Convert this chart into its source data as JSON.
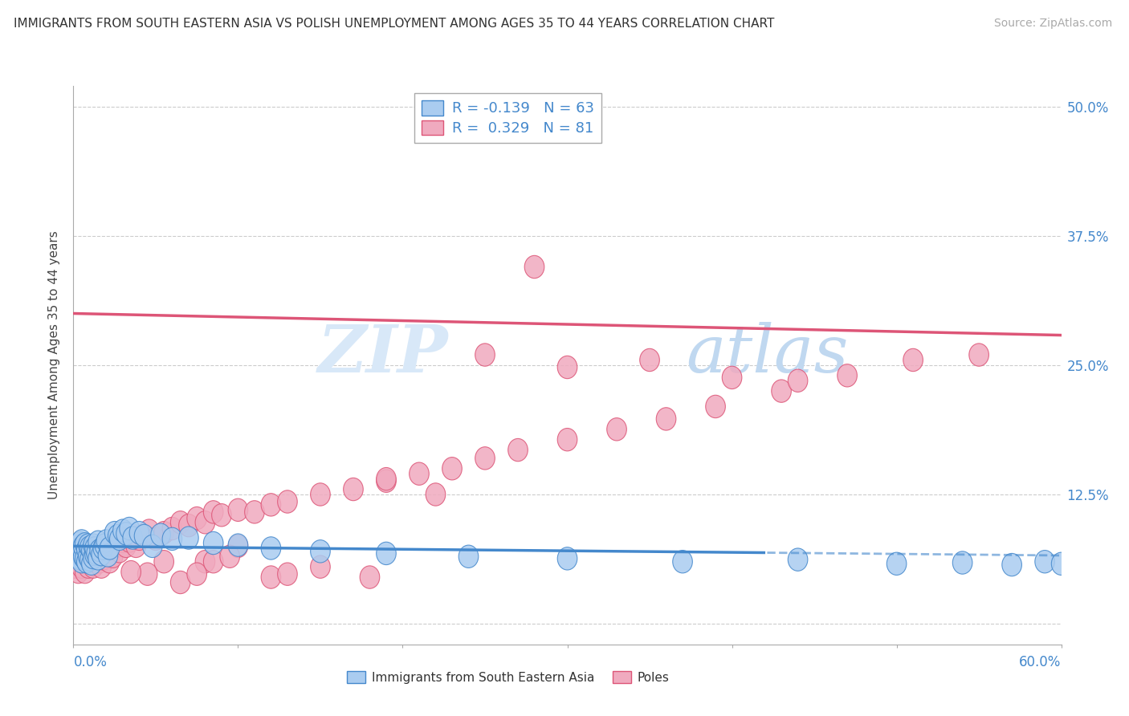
{
  "title": "IMMIGRANTS FROM SOUTH EASTERN ASIA VS POLISH UNEMPLOYMENT AMONG AGES 35 TO 44 YEARS CORRELATION CHART",
  "source": "Source: ZipAtlas.com",
  "xmin": 0.0,
  "xmax": 0.6,
  "ymin": -0.02,
  "ymax": 0.52,
  "yticks": [
    0.0,
    0.125,
    0.25,
    0.375,
    0.5
  ],
  "ytick_labels": [
    "",
    "12.5%",
    "25.0%",
    "37.5%",
    "50.0%"
  ],
  "legend_R_blue": "-0.139",
  "legend_N_blue": "63",
  "legend_R_pink": "0.329",
  "legend_N_pink": "81",
  "blue_color": "#aaccf0",
  "pink_color": "#f0aabf",
  "blue_edge_color": "#4488cc",
  "pink_edge_color": "#dd5577",
  "blue_line_color": "#4488cc",
  "pink_line_color": "#dd5577",
  "watermark_color": "#d8e8f8",
  "watermark_color2": "#c0d8f0",
  "blue_trend": [
    -0.015,
    0.075
  ],
  "pink_trend": [
    -0.035,
    0.3
  ],
  "blue_scatter_x": [
    0.001,
    0.002,
    0.002,
    0.003,
    0.003,
    0.004,
    0.004,
    0.005,
    0.005,
    0.005,
    0.006,
    0.006,
    0.007,
    0.007,
    0.008,
    0.008,
    0.009,
    0.009,
    0.01,
    0.01,
    0.011,
    0.011,
    0.012,
    0.012,
    0.013,
    0.013,
    0.014,
    0.015,
    0.015,
    0.016,
    0.017,
    0.018,
    0.019,
    0.02,
    0.021,
    0.022,
    0.025,
    0.027,
    0.028,
    0.03,
    0.032,
    0.034,
    0.036,
    0.04,
    0.043,
    0.048,
    0.053,
    0.06,
    0.07,
    0.085,
    0.1,
    0.12,
    0.15,
    0.19,
    0.24,
    0.3,
    0.37,
    0.44,
    0.5,
    0.54,
    0.57,
    0.59,
    0.6
  ],
  "blue_scatter_y": [
    0.068,
    0.072,
    0.065,
    0.07,
    0.075,
    0.063,
    0.078,
    0.06,
    0.073,
    0.08,
    0.065,
    0.075,
    0.063,
    0.077,
    0.06,
    0.072,
    0.065,
    0.076,
    0.062,
    0.074,
    0.058,
    0.071,
    0.064,
    0.076,
    0.067,
    0.073,
    0.068,
    0.063,
    0.079,
    0.071,
    0.067,
    0.073,
    0.076,
    0.08,
    0.066,
    0.073,
    0.088,
    0.085,
    0.082,
    0.09,
    0.087,
    0.092,
    0.083,
    0.088,
    0.085,
    0.075,
    0.086,
    0.082,
    0.083,
    0.078,
    0.076,
    0.073,
    0.07,
    0.068,
    0.065,
    0.063,
    0.06,
    0.062,
    0.058,
    0.059,
    0.057,
    0.06,
    0.058
  ],
  "pink_scatter_x": [
    0.001,
    0.002,
    0.003,
    0.004,
    0.005,
    0.006,
    0.007,
    0.008,
    0.009,
    0.01,
    0.011,
    0.012,
    0.013,
    0.014,
    0.015,
    0.016,
    0.017,
    0.018,
    0.019,
    0.02,
    0.022,
    0.024,
    0.026,
    0.028,
    0.03,
    0.032,
    0.034,
    0.036,
    0.038,
    0.04,
    0.042,
    0.046,
    0.05,
    0.055,
    0.06,
    0.065,
    0.07,
    0.075,
    0.08,
    0.085,
    0.09,
    0.1,
    0.11,
    0.12,
    0.13,
    0.15,
    0.17,
    0.19,
    0.21,
    0.23,
    0.25,
    0.27,
    0.3,
    0.33,
    0.36,
    0.39,
    0.43,
    0.47,
    0.51,
    0.55,
    0.28,
    0.35,
    0.25,
    0.3,
    0.19,
    0.22,
    0.4,
    0.44,
    0.08,
    0.1,
    0.12,
    0.055,
    0.045,
    0.035,
    0.065,
    0.075,
    0.085,
    0.095,
    0.13,
    0.15,
    0.18
  ],
  "pink_scatter_y": [
    0.055,
    0.06,
    0.05,
    0.065,
    0.055,
    0.06,
    0.05,
    0.06,
    0.055,
    0.065,
    0.06,
    0.055,
    0.065,
    0.06,
    0.065,
    0.06,
    0.055,
    0.063,
    0.066,
    0.07,
    0.06,
    0.065,
    0.075,
    0.07,
    0.08,
    0.075,
    0.08,
    0.085,
    0.075,
    0.082,
    0.085,
    0.09,
    0.082,
    0.088,
    0.092,
    0.098,
    0.095,
    0.102,
    0.098,
    0.108,
    0.105,
    0.11,
    0.108,
    0.115,
    0.118,
    0.125,
    0.13,
    0.138,
    0.145,
    0.15,
    0.16,
    0.168,
    0.178,
    0.188,
    0.198,
    0.21,
    0.225,
    0.24,
    0.255,
    0.26,
    0.345,
    0.255,
    0.26,
    0.248,
    0.14,
    0.125,
    0.238,
    0.235,
    0.06,
    0.075,
    0.045,
    0.06,
    0.048,
    0.05,
    0.04,
    0.048,
    0.06,
    0.065,
    0.048,
    0.055,
    0.045
  ]
}
